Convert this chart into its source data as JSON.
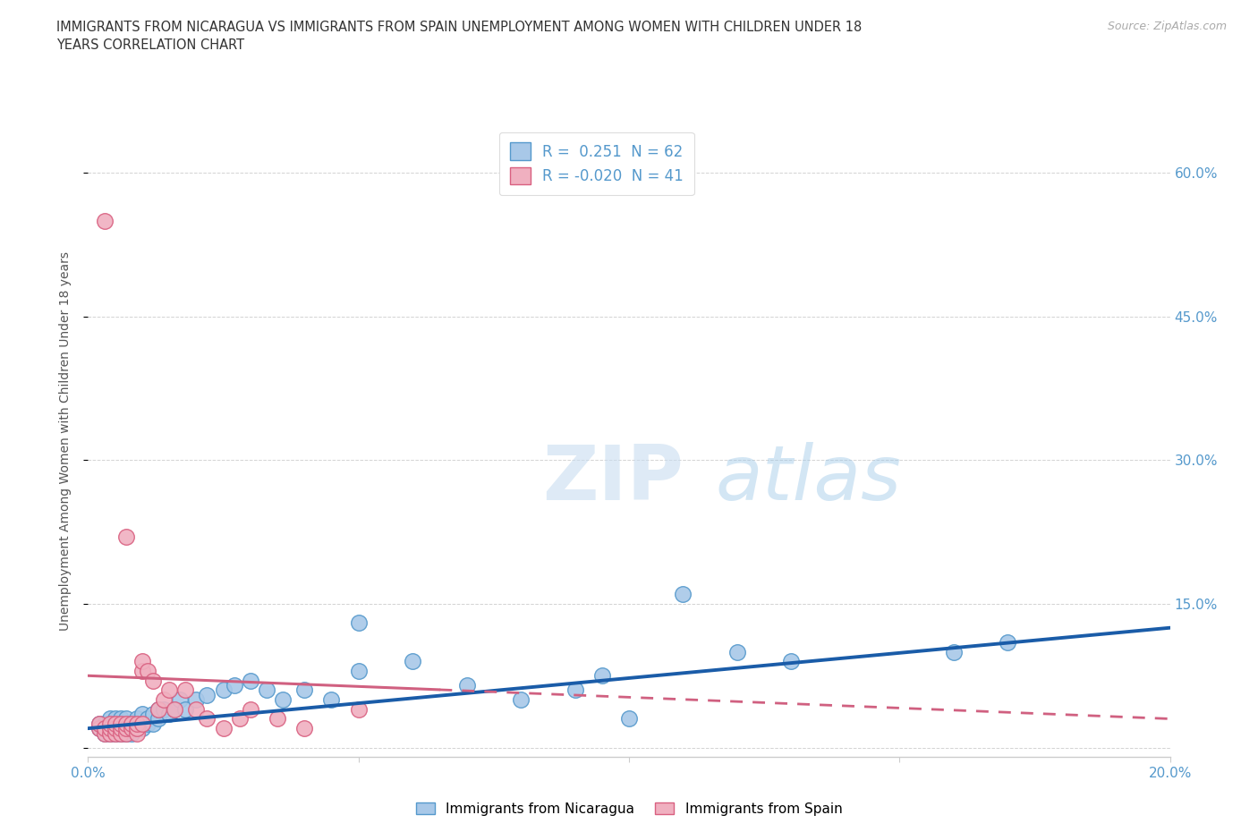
{
  "title": "IMMIGRANTS FROM NICARAGUA VS IMMIGRANTS FROM SPAIN UNEMPLOYMENT AMONG WOMEN WITH CHILDREN UNDER 18\nYEARS CORRELATION CHART",
  "source": "Source: ZipAtlas.com",
  "ylabel": "Unemployment Among Women with Children Under 18 years",
  "xlim": [
    0.0,
    0.2
  ],
  "ylim": [
    -0.01,
    0.65
  ],
  "yticks": [
    0.0,
    0.15,
    0.3,
    0.45,
    0.6
  ],
  "ytick_labels": [
    "",
    "15.0%",
    "30.0%",
    "45.0%",
    "60.0%"
  ],
  "xticks": [
    0.0,
    0.05,
    0.1,
    0.15,
    0.2
  ],
  "xtick_labels": [
    "0.0%",
    "",
    "",
    "",
    "20.0%"
  ],
  "watermark_zip": "ZIP",
  "watermark_atlas": "atlas",
  "nicaragua_color": "#a8c8e8",
  "nicaragua_edge": "#5599cc",
  "spain_color": "#f0b0c0",
  "spain_edge": "#d96080",
  "nicaragua_R": 0.251,
  "nicaragua_N": 62,
  "spain_R": -0.02,
  "spain_N": 41,
  "line_nicaragua_color": "#1a5ca8",
  "line_spain_color": "#d06080",
  "background_color": "#ffffff",
  "grid_color": "#c8c8c8",
  "axis_color": "#5599cc",
  "nicaragua_x": [
    0.002,
    0.002,
    0.003,
    0.003,
    0.003,
    0.004,
    0.004,
    0.004,
    0.004,
    0.005,
    0.005,
    0.005,
    0.005,
    0.006,
    0.006,
    0.006,
    0.007,
    0.007,
    0.007,
    0.007,
    0.008,
    0.008,
    0.008,
    0.009,
    0.009,
    0.009,
    0.01,
    0.01,
    0.01,
    0.011,
    0.011,
    0.012,
    0.012,
    0.013,
    0.013,
    0.014,
    0.015,
    0.016,
    0.017,
    0.018,
    0.02,
    0.022,
    0.025,
    0.027,
    0.03,
    0.033,
    0.036,
    0.04,
    0.045,
    0.05,
    0.06,
    0.07,
    0.08,
    0.09,
    0.1,
    0.11,
    0.13,
    0.16,
    0.17,
    0.05,
    0.12,
    0.095
  ],
  "nicaragua_y": [
    0.02,
    0.025,
    0.015,
    0.02,
    0.025,
    0.015,
    0.02,
    0.025,
    0.03,
    0.015,
    0.02,
    0.025,
    0.03,
    0.015,
    0.02,
    0.03,
    0.015,
    0.02,
    0.025,
    0.03,
    0.015,
    0.02,
    0.025,
    0.02,
    0.025,
    0.03,
    0.02,
    0.025,
    0.035,
    0.025,
    0.03,
    0.025,
    0.035,
    0.03,
    0.04,
    0.04,
    0.035,
    0.04,
    0.05,
    0.04,
    0.05,
    0.055,
    0.06,
    0.065,
    0.07,
    0.06,
    0.05,
    0.06,
    0.05,
    0.08,
    0.09,
    0.065,
    0.05,
    0.06,
    0.03,
    0.16,
    0.09,
    0.1,
    0.11,
    0.13,
    0.1,
    0.075
  ],
  "spain_x": [
    0.002,
    0.002,
    0.003,
    0.003,
    0.004,
    0.004,
    0.004,
    0.005,
    0.005,
    0.005,
    0.006,
    0.006,
    0.006,
    0.007,
    0.007,
    0.007,
    0.007,
    0.008,
    0.008,
    0.009,
    0.009,
    0.009,
    0.01,
    0.01,
    0.01,
    0.011,
    0.012,
    0.013,
    0.014,
    0.015,
    0.016,
    0.018,
    0.02,
    0.022,
    0.025,
    0.028,
    0.03,
    0.035,
    0.04,
    0.05,
    0.003
  ],
  "spain_y": [
    0.02,
    0.025,
    0.015,
    0.02,
    0.015,
    0.02,
    0.025,
    0.015,
    0.02,
    0.025,
    0.015,
    0.02,
    0.025,
    0.015,
    0.02,
    0.025,
    0.22,
    0.02,
    0.025,
    0.015,
    0.02,
    0.025,
    0.08,
    0.09,
    0.025,
    0.08,
    0.07,
    0.04,
    0.05,
    0.06,
    0.04,
    0.06,
    0.04,
    0.03,
    0.02,
    0.03,
    0.04,
    0.03,
    0.02,
    0.04,
    0.55
  ],
  "nic_line_x0": 0.0,
  "nic_line_y0": 0.02,
  "nic_line_x1": 0.2,
  "nic_line_y1": 0.125,
  "sp_line_x0": 0.0,
  "sp_line_y0": 0.075,
  "sp_line_x1": 0.2,
  "sp_line_y1": 0.03
}
